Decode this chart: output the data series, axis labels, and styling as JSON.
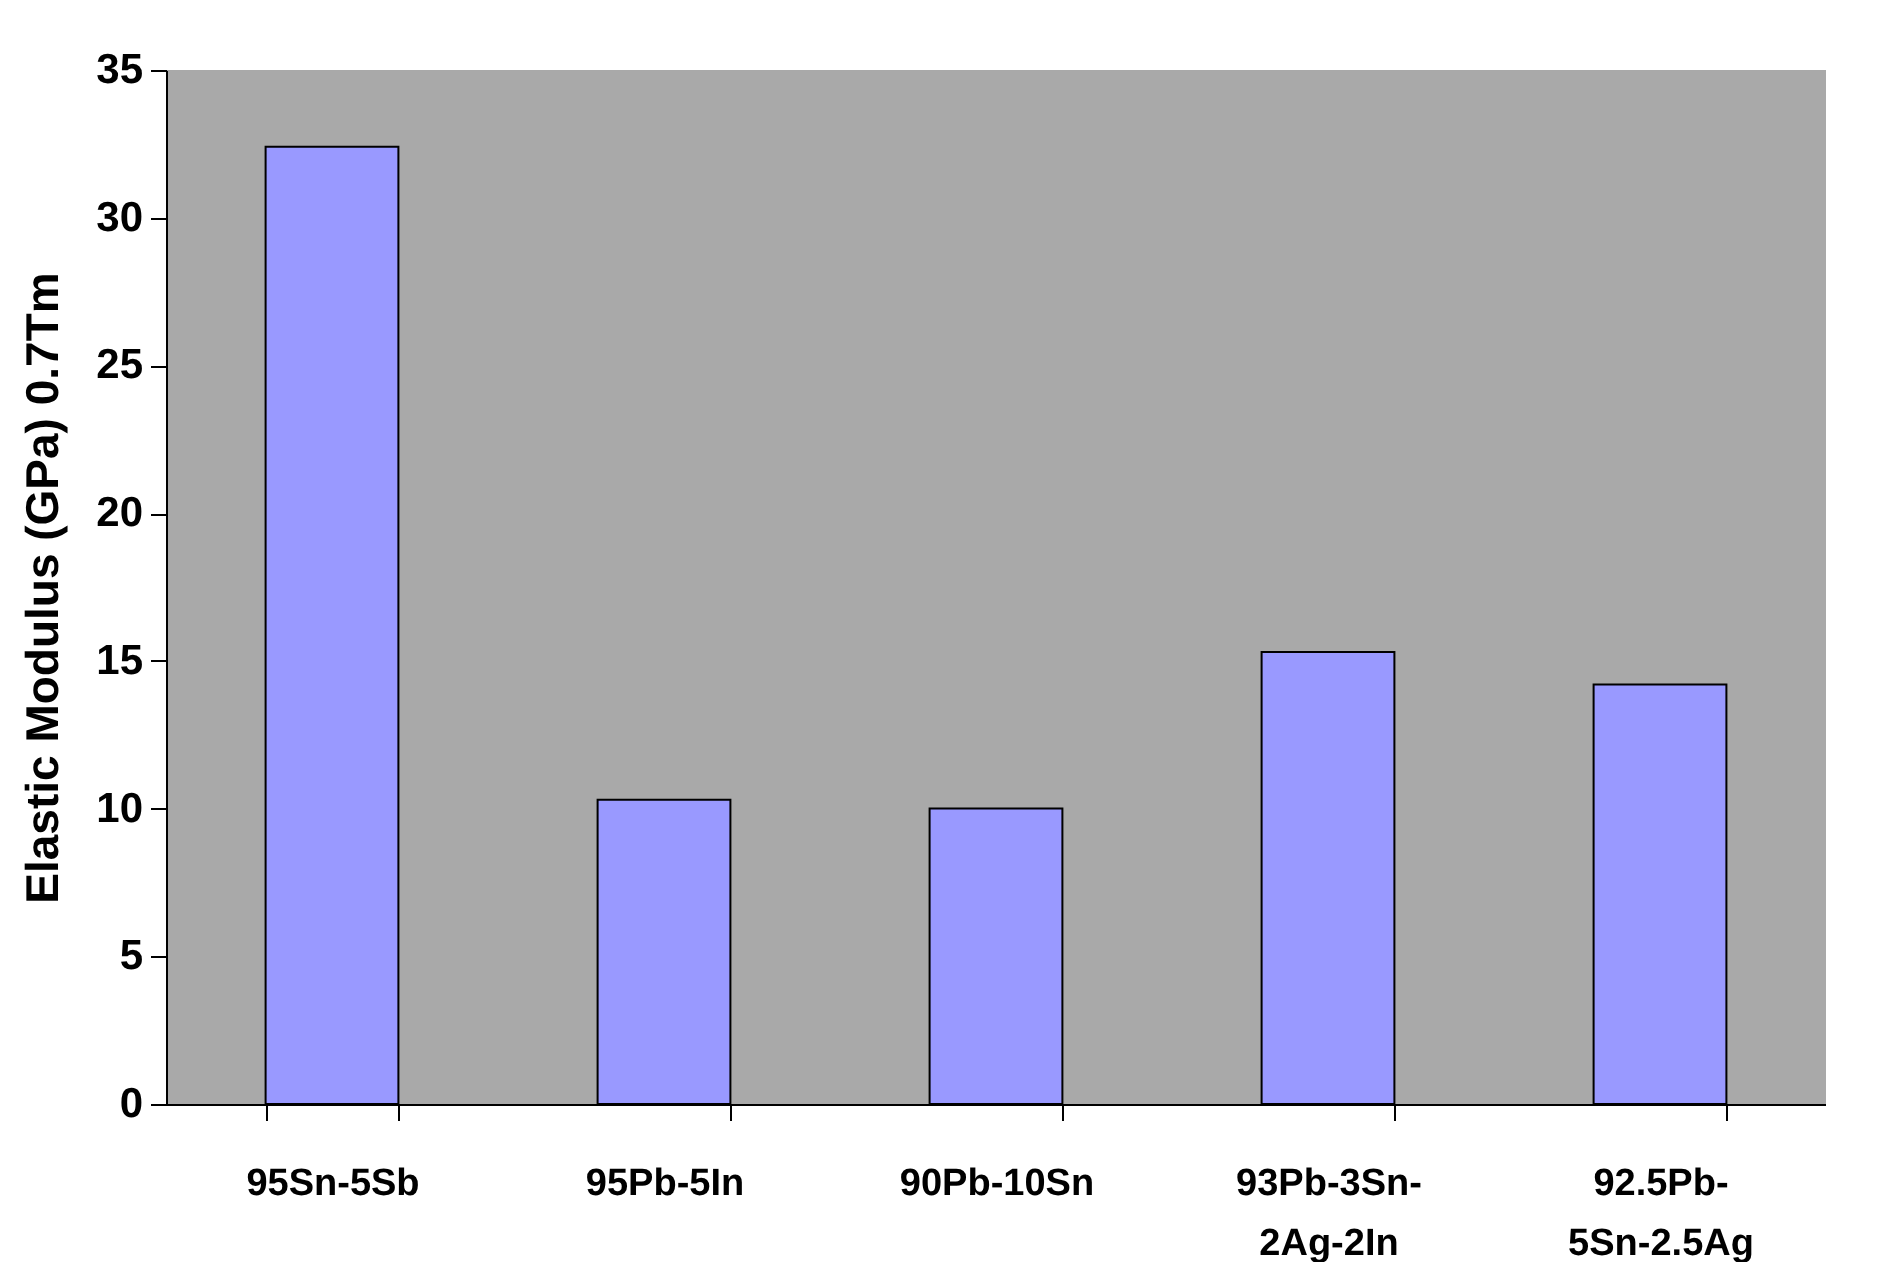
{
  "chart_data": {
    "type": "bar",
    "ylabel": "Elastic Modulus (GPa) 0.7Tm",
    "categories": [
      "95Sn-5Sb",
      "95Pb-5In",
      "90Pb-10Sn",
      "93Pb-3Sn-2Ag-2In",
      "92.5Pb-5Sn-2.5Ag"
    ],
    "values": [
      32.4,
      10.3,
      10.0,
      15.3,
      14.2
    ],
    "color": "#9999ff",
    "ylim": [
      0,
      35
    ],
    "yticks": [
      0,
      5,
      10,
      15,
      20,
      25,
      30,
      35
    ],
    "grid": false
  }
}
